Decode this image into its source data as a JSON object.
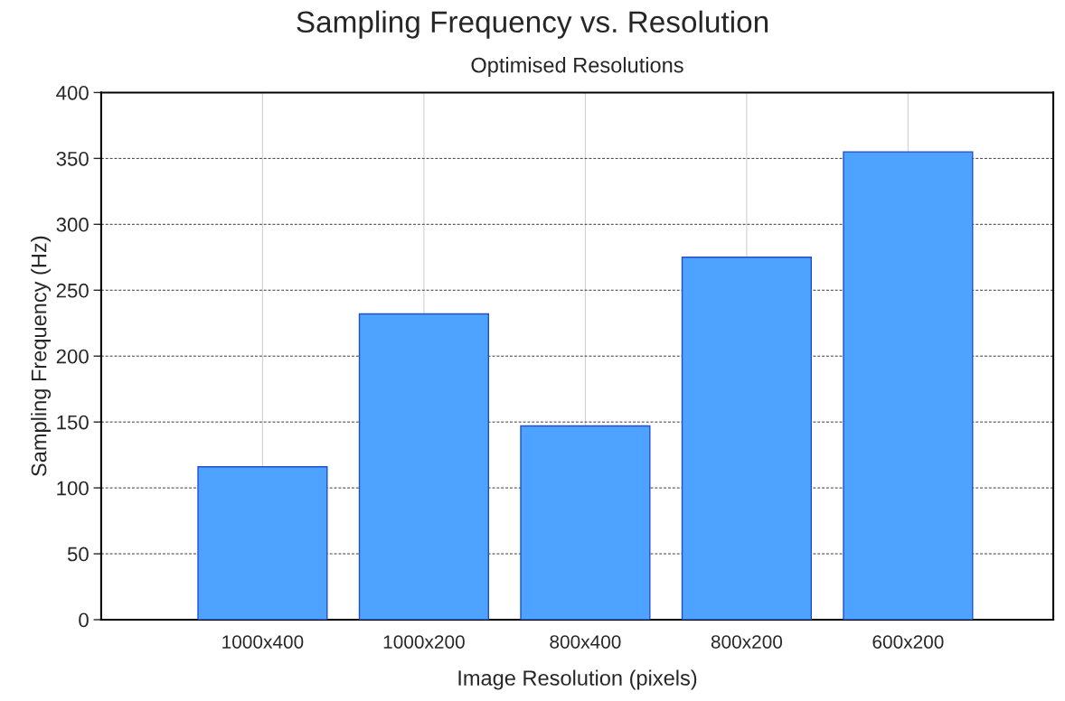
{
  "chart_data": {
    "type": "bar",
    "title": "Sampling Frequency vs. Resolution",
    "subtitle": "Optimised Resolutions",
    "xlabel": "Image Resolution (pixels)",
    "ylabel": "Sampling Frequency (Hz)",
    "categories": [
      "1000x400",
      "1000x200",
      "800x400",
      "800x200",
      "600x200"
    ],
    "values": [
      116,
      232,
      147,
      275,
      355
    ],
    "color": "#4da3ff",
    "ylim": [
      0,
      400
    ],
    "yticks": [
      0,
      50,
      100,
      150,
      200,
      250,
      300,
      350,
      400
    ],
    "grid": true
  }
}
